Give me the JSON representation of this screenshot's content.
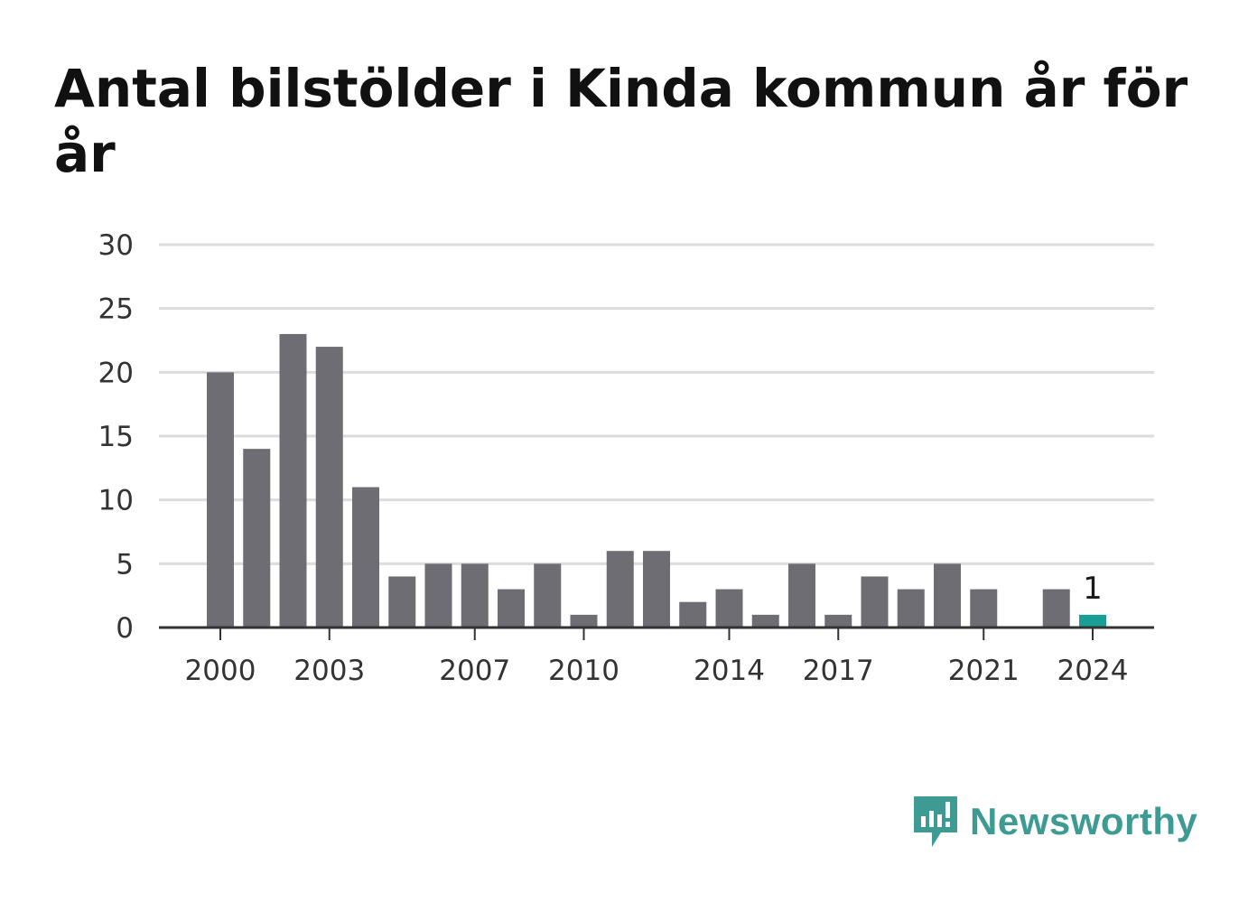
{
  "title": "Antal bilstölder i Kinda kommun år för år",
  "brand": {
    "name": "Newsworthy",
    "color": "#3d9b94",
    "icon": "newsworthy-logo-icon"
  },
  "colors": {
    "bar": "#6e6d73",
    "highlight": "#1a9e96",
    "grid": "#dcdcdc",
    "axis": "#333333"
  },
  "chart_data": {
    "type": "bar",
    "title": "Antal bilstölder i Kinda kommun år för år",
    "xlabel": "",
    "ylabel": "",
    "categories": [
      "2000",
      "2001",
      "2002",
      "2003",
      "2004",
      "2005",
      "2006",
      "2007",
      "2008",
      "2009",
      "2010",
      "2011",
      "2012",
      "2013",
      "2014",
      "2015",
      "2016",
      "2017",
      "2018",
      "2019",
      "2020",
      "2021",
      "2022",
      "2023",
      "2024"
    ],
    "values": [
      20,
      14,
      23,
      22,
      11,
      4,
      5,
      5,
      3,
      5,
      1,
      6,
      6,
      2,
      3,
      1,
      5,
      1,
      4,
      3,
      5,
      3,
      0,
      3,
      1
    ],
    "highlight_index": 24,
    "data_labels": [
      {
        "index": 24,
        "text": "1"
      }
    ],
    "ylim": [
      0,
      30
    ],
    "yticks": [
      0,
      5,
      10,
      15,
      20,
      25,
      30
    ],
    "xtick_labels": [
      "2000",
      "2003",
      "2007",
      "2010",
      "2014",
      "2017",
      "2021",
      "2024"
    ],
    "grid": true,
    "legend": "none"
  }
}
